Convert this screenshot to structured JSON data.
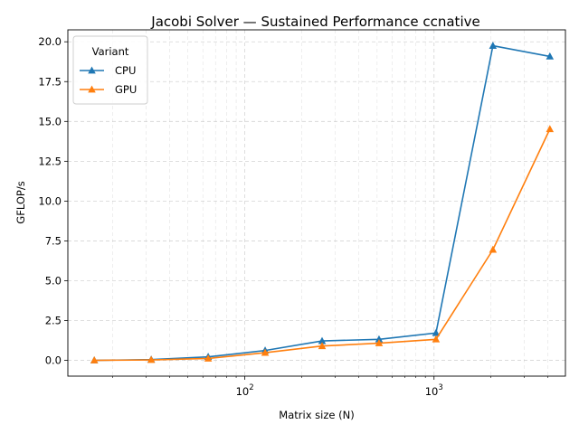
{
  "chart_data": {
    "type": "line",
    "title": "Jacobi Solver — Sustained Performance ccnative",
    "xlabel": "Matrix size (N)",
    "ylabel": "GFLOP/s",
    "xscale": "log",
    "xlim": [
      11.6,
      4950
    ],
    "ylim": [
      -0.99,
      20.75
    ],
    "x": [
      16,
      32,
      64,
      128,
      256,
      512,
      1024,
      2048,
      4096
    ],
    "x_ticks": [
      {
        "value": 100,
        "base": "10",
        "exp": "2"
      },
      {
        "value": 1000,
        "base": "10",
        "exp": "3"
      }
    ],
    "y_ticks": [
      "0.0",
      "2.5",
      "5.0",
      "7.5",
      "10.0",
      "12.5",
      "15.0",
      "17.5",
      "20.0"
    ],
    "grid": true,
    "legend": {
      "title": "Variant",
      "position": "top-left"
    },
    "series": [
      {
        "name": "CPU",
        "color": "#1f77b4",
        "marker": "triangle",
        "values": [
          0.0,
          0.05,
          0.22,
          0.62,
          1.22,
          1.32,
          1.72,
          19.75,
          19.08
        ]
      },
      {
        "name": "GPU",
        "color": "#ff7f0e",
        "marker": "triangle",
        "values": [
          0.0,
          0.03,
          0.12,
          0.48,
          0.9,
          1.08,
          1.32,
          6.95,
          14.52
        ]
      }
    ]
  }
}
